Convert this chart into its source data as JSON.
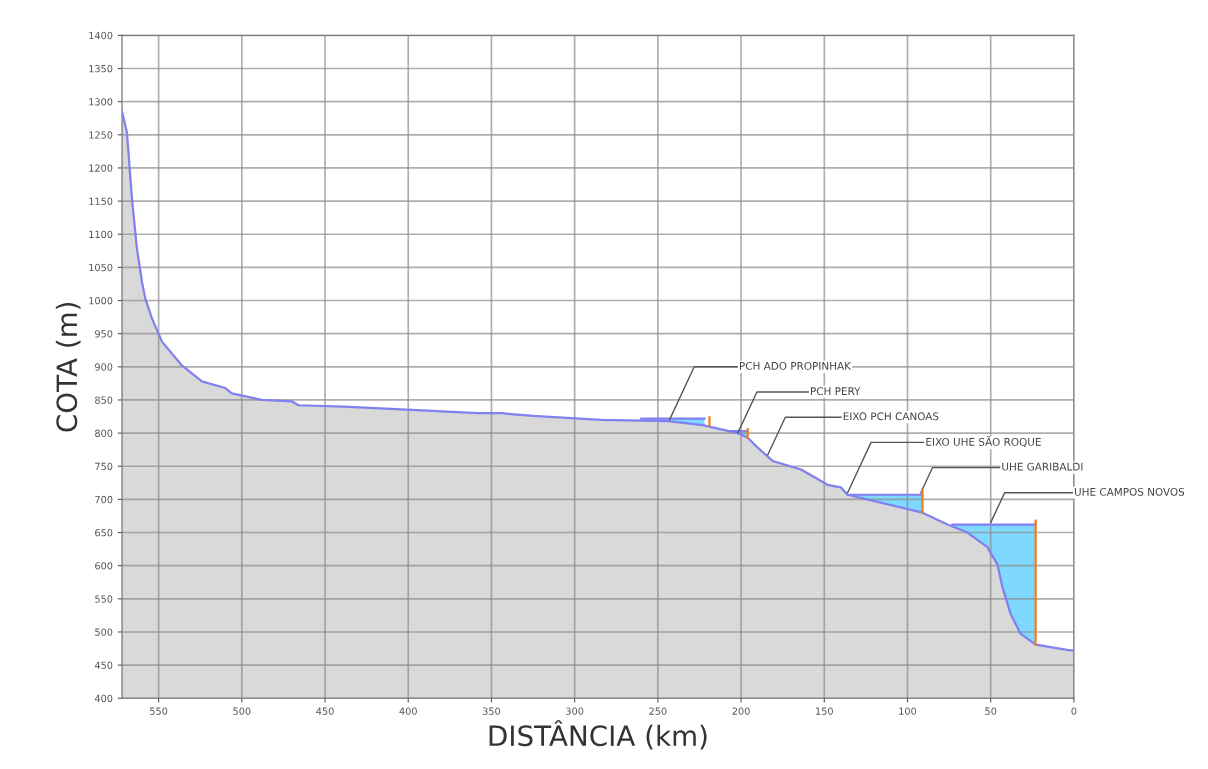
{
  "chart_data": {
    "type": "area",
    "xlabel": "DISTÂNCIA (km)",
    "ylabel": "COTA (m)",
    "xlim": [
      572,
      0
    ],
    "xticks": [
      550,
      500,
      450,
      400,
      350,
      300,
      250,
      200,
      150,
      100,
      50,
      0
    ],
    "ylim": [
      400,
      1400
    ],
    "yticks": [
      400,
      450,
      500,
      550,
      600,
      650,
      700,
      750,
      800,
      850,
      900,
      950,
      1000,
      1050,
      1100,
      1150,
      1200,
      1250,
      1300,
      1350,
      1400
    ],
    "grid": true,
    "series": [
      {
        "color": "#7fd8ff",
        "x": [
          260,
          222
        ],
        "values": [
          822,
          822
        ]
      },
      {
        "color": "#7fd8ff",
        "x": [
          206,
          196
        ],
        "values": [
          803,
          803
        ]
      },
      {
        "color": "#7fd8ff",
        "x": [
          136,
          91
        ],
        "values": [
          707,
          707
        ]
      },
      {
        "color": "#7fd8ff",
        "x": [
          73,
          23
        ],
        "values": [
          662,
          662
        ]
      },
      {
        "color": "#d9d9d9",
        "x": [
          572,
          569,
          566,
          563,
          560,
          558,
          554,
          548,
          536,
          524,
          510,
          506,
          488,
          470,
          466,
          439,
          398,
          358,
          344,
          325,
          284,
          244,
          223,
          202,
          196,
          190,
          181,
          164,
          148,
          140,
          136,
          91,
          76,
          64,
          52,
          46,
          43,
          38,
          32,
          23,
          4,
          0
        ],
        "values": [
          1285,
          1253,
          1153,
          1078,
          1028,
          1003,
          973,
          938,
          902,
          878,
          868,
          860,
          850,
          848,
          842,
          840,
          835,
          830,
          830,
          826,
          820,
          818,
          812,
          800,
          793,
          778,
          758,
          745,
          722,
          718,
          707,
          680,
          662,
          650,
          628,
          602,
          568,
          527,
          497,
          481,
          473,
          472
        ]
      },
      {
        "type": "line",
        "color": "#f07c1c",
        "x": [
          219,
          219
        ],
        "values": [
          812,
          824
        ]
      },
      {
        "type": "line",
        "color": "#f07c1c",
        "x": [
          196,
          196
        ],
        "values": [
          793,
          806
        ]
      },
      {
        "type": "line",
        "color": "#f07c1c",
        "x": [
          91,
          91
        ],
        "values": [
          680,
          713
        ]
      },
      {
        "type": "line",
        "color": "#f07c1c",
        "x": [
          23,
          23
        ],
        "values": [
          481,
          668
        ]
      }
    ],
    "annotations": [
      {
        "text": "PCH ADO PROPINHAK",
        "x": 243,
        "y": 820
      },
      {
        "text": "PCH PERY",
        "x": 202,
        "y": 800
      },
      {
        "text": "EIXO PCH CANOAS",
        "x": 184,
        "y": 767
      },
      {
        "text": "EIXO UHE SÃO ROQUE",
        "x": 136,
        "y": 710
      },
      {
        "text": "UHE GARIBALDI",
        "x": 92,
        "y": 710
      },
      {
        "text": "UHE CAMPOS NOVOS",
        "x": 50,
        "y": 665
      }
    ]
  }
}
